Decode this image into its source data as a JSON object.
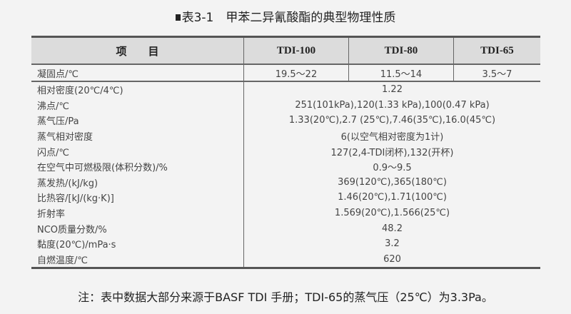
{
  "title": {
    "marker": "■",
    "text": "表3-1　甲苯二异氰酸酯的典型物理性质"
  },
  "table": {
    "headers": [
      "项　　目",
      "TDI-100",
      "TDI-80",
      "TDI-65"
    ],
    "first_row": {
      "label": "凝固点/℃",
      "values": [
        "19.5～22",
        "11.5～14",
        "3.5～7"
      ]
    },
    "rows": [
      {
        "label": "相对密度(20℃/4℃)",
        "value": "1.22"
      },
      {
        "label": "沸点/℃",
        "value": "251(101kPa),120(1.33 kPa),100(0.47 kPa)"
      },
      {
        "label": "蒸气压/Pa",
        "value": "1.33(20℃),2.7 (25℃),7.46(35℃),16.0(45℃)"
      },
      {
        "label": "蒸气相对密度",
        "value": "6(以空气相对密度为1计)"
      },
      {
        "label": "闪点/℃",
        "value": "127(2,4-TDI闭杯),132(开杯)"
      },
      {
        "label": "在空气中可燃极限(体积分数)/%",
        "value": "0.9～9.5"
      },
      {
        "label": "蒸发热/(kJ/kg)",
        "value": "369(120℃),365(180℃)"
      },
      {
        "label": "比热容/[kJ/(kg·K)]",
        "value": "1.46(20℃),1.71(100℃)"
      },
      {
        "label": "折射率",
        "value": "1.569(20℃),1.566(25℃)"
      },
      {
        "label": "NCO质量分数/%",
        "value": "48.2"
      },
      {
        "label": "黏度(20℃)/mPa·s",
        "value": "3.2"
      },
      {
        "label": "自燃温度/℃",
        "value": "620"
      }
    ]
  },
  "note": "注：表中数据大部分来源于BASF TDI 手册；TDI-65的蒸气压（25℃）为3.3Pa。"
}
